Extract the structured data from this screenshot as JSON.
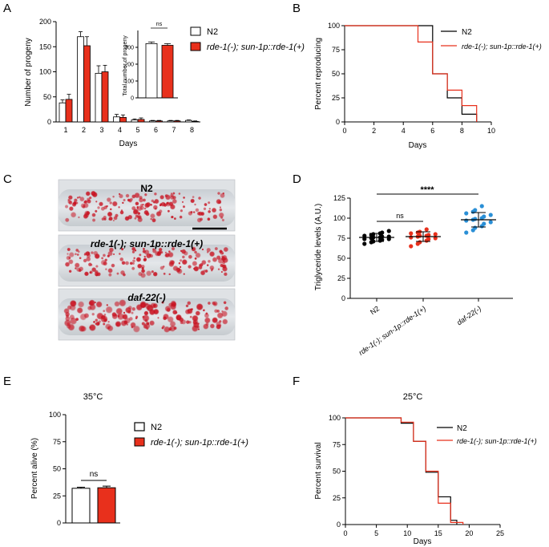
{
  "figure": {
    "description_free": true
  },
  "colors": {
    "n2": "#000000",
    "rde": "#e8301c",
    "daf": "#2a8fd6",
    "bar_fill_n2": "#ffffff",
    "bar_fill_rde": "#e8301c"
  },
  "panel_labels": {
    "a": "A",
    "b": "B",
    "c": "C",
    "d": "D",
    "e": "E",
    "f": "F"
  },
  "legend": {
    "n2": "N2",
    "rde": "rde-1(-); sun-1p::rde-1(+)"
  },
  "panel_c": {
    "labels": [
      "N2",
      "rde-1(-); sun-1p::rde-1(+)",
      "daf-22(-)"
    ]
  },
  "chart_data": [
    {
      "panel": "A",
      "type": "bar",
      "xlabel": "Days",
      "ylabel": "Number of progeny",
      "categories": [
        "1",
        "2",
        "3",
        "4",
        "5",
        "6",
        "7",
        "8"
      ],
      "ylim": [
        0,
        200
      ],
      "yticks": [
        "0",
        "50",
        "100",
        "150",
        "200"
      ],
      "series": [
        {
          "name": "N2",
          "values": [
            38,
            170,
            97,
            10,
            4,
            2,
            2,
            3
          ],
          "errors": [
            6,
            10,
            15,
            5,
            2,
            1,
            1,
            1
          ]
        },
        {
          "name": "rde-1(-); sun-1p::rde-1(+)",
          "values": [
            45,
            152,
            100,
            9,
            5,
            2,
            2,
            1
          ],
          "errors": [
            10,
            18,
            13,
            5,
            3,
            1,
            1,
            1
          ]
        }
      ],
      "inset": {
        "ylabel": "Total number of progeny",
        "ylim": [
          0,
          400
        ],
        "yticks": [
          "0",
          "100",
          "200",
          "300"
        ],
        "values": [
          322,
          312
        ],
        "errors": [
          10,
          10
        ],
        "annotation": "ns"
      }
    },
    {
      "panel": "B",
      "type": "line",
      "xlabel": "Days",
      "ylabel": "Percent reproducing",
      "xlim": [
        0,
        10
      ],
      "ylim": [
        0,
        100
      ],
      "xticks": [
        "0",
        "2",
        "4",
        "6",
        "8",
        "10"
      ],
      "yticks": [
        "0",
        "25",
        "50",
        "75",
        "100"
      ],
      "series": [
        {
          "name": "N2",
          "steps": [
            [
              0,
              100
            ],
            [
              6,
              100
            ],
            [
              6,
              50
            ],
            [
              7,
              50
            ],
            [
              7,
              25
            ],
            [
              8,
              25
            ],
            [
              8,
              8
            ],
            [
              9,
              8
            ],
            [
              9,
              0
            ]
          ]
        },
        {
          "name": "rde-1(-); sun-1p::rde-1(+)",
          "steps": [
            [
              0,
              100
            ],
            [
              5,
              100
            ],
            [
              5,
              83
            ],
            [
              6,
              83
            ],
            [
              6,
              50
            ],
            [
              7,
              50
            ],
            [
              7,
              33
            ],
            [
              8,
              33
            ],
            [
              8,
              17
            ],
            [
              9,
              17
            ],
            [
              9,
              0
            ]
          ]
        }
      ]
    },
    {
      "panel": "D",
      "type": "scatter",
      "ylabel": "Triglyceride levels (A.U.)",
      "categories": [
        "N2",
        "rde-1(-); sun-1p::rde-1(+)",
        "daf-22(-)"
      ],
      "ylim": [
        0,
        125
      ],
      "yticks": [
        "0",
        "25",
        "50",
        "75",
        "100",
        "125"
      ],
      "means": [
        76,
        77,
        98
      ],
      "sds": [
        5,
        6,
        9
      ],
      "groups": [
        [
          68,
          70,
          71,
          72,
          73,
          74,
          74,
          75,
          76,
          76,
          77,
          77,
          78,
          79,
          80,
          81,
          82,
          84
        ],
        [
          65,
          68,
          70,
          72,
          74,
          75,
          76,
          77,
          78,
          78,
          79,
          80,
          81,
          82,
          83,
          86
        ],
        [
          82,
          85,
          88,
          90,
          93,
          95,
          97,
          98,
          99,
          100,
          102,
          104,
          106,
          108,
          110,
          115
        ]
      ],
      "annotations": {
        "ns": "ns",
        "stars": "****"
      }
    },
    {
      "panel": "E",
      "type": "bar",
      "title": "35°C",
      "ylabel": "Percent alive (%)",
      "ylim": [
        0,
        100
      ],
      "yticks": [
        "0",
        "25",
        "50",
        "75",
        "100"
      ],
      "categories": [
        "N2",
        "rde-1(-); sun-1p::rde-1(+)"
      ],
      "values": [
        32,
        32.5
      ],
      "errors": [
        1,
        1.5
      ],
      "annotation": "ns"
    },
    {
      "panel": "F",
      "type": "line",
      "title": "25°C",
      "xlabel": "Days",
      "ylabel": "Percent survival",
      "xlim": [
        0,
        25
      ],
      "ylim": [
        0,
        100
      ],
      "xticks": [
        "0",
        "5",
        "10",
        "15",
        "20",
        "25"
      ],
      "yticks": [
        "0",
        "25",
        "50",
        "75",
        "100"
      ],
      "series": [
        {
          "name": "N2",
          "steps": [
            [
              0,
              100
            ],
            [
              9,
              100
            ],
            [
              9,
              95
            ],
            [
              11,
              95
            ],
            [
              11,
              78
            ],
            [
              13,
              78
            ],
            [
              13,
              49
            ],
            [
              15,
              49
            ],
            [
              15,
              26
            ],
            [
              17,
              26
            ],
            [
              17,
              4
            ],
            [
              18,
              4
            ],
            [
              18,
              0
            ]
          ]
        },
        {
          "name": "rde-1(-); sun-1p::rde-1(+)",
          "steps": [
            [
              0,
              100
            ],
            [
              9,
              100
            ],
            [
              9,
              96
            ],
            [
              11,
              96
            ],
            [
              11,
              78
            ],
            [
              13,
              78
            ],
            [
              13,
              50
            ],
            [
              15,
              50
            ],
            [
              15,
              20
            ],
            [
              17,
              20
            ],
            [
              17,
              2
            ],
            [
              19,
              2
            ],
            [
              19,
              0
            ]
          ]
        }
      ]
    }
  ]
}
